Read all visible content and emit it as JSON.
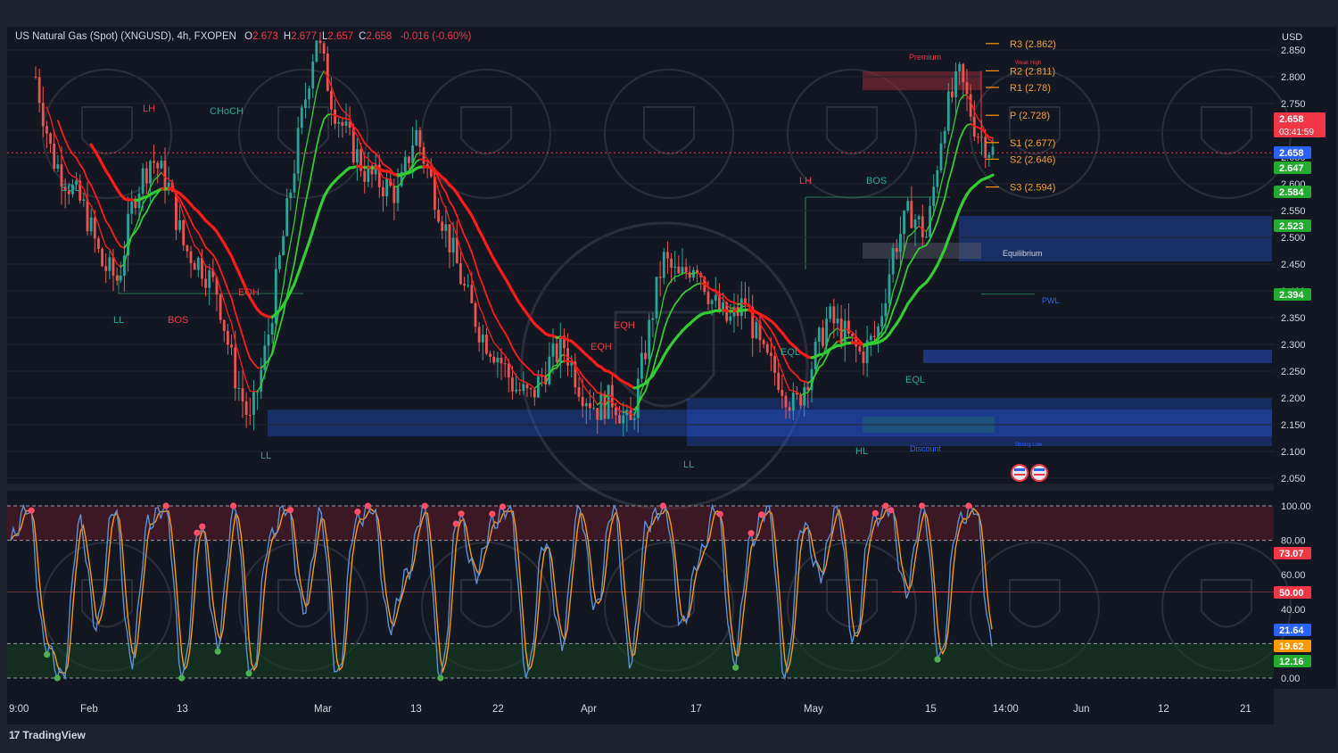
{
  "header": {
    "symbol_title": "US Natural Gas (Spot) (XNGUSD), 4h, FXOPEN",
    "ohlc": [
      {
        "label": "O",
        "value": "2.673"
      },
      {
        "label": "H",
        "value": "2.677"
      },
      {
        "label": "L",
        "value": "2.657"
      },
      {
        "label": "C",
        "value": "2.658"
      }
    ],
    "change": "-0.016 (-0.60%)"
  },
  "currency": "USD",
  "chart_data": [
    {
      "type": "line",
      "title": "US Natural Gas (Spot) (XNGUSD), 4h, FXOPEN",
      "ylim": [
        2.05,
        2.85
      ],
      "y_ticks": [
        "2.850",
        "2.800",
        "2.750",
        "2.700",
        "2.650",
        "2.600",
        "2.550",
        "2.500",
        "2.450",
        "2.400",
        "2.350",
        "2.300",
        "2.250",
        "2.200",
        "2.150",
        "2.100",
        "2.050"
      ],
      "x_ticks": [
        "9:00",
        "Feb",
        "13",
        "Mar",
        "13",
        "22",
        "Apr",
        "17",
        "May",
        "15",
        "14:00",
        "Jun",
        "12",
        "21"
      ],
      "price_path": [
        2.8,
        2.65,
        2.6,
        2.55,
        2.45,
        2.42,
        2.58,
        2.65,
        2.6,
        2.48,
        2.45,
        2.4,
        2.25,
        2.15,
        2.3,
        2.5,
        2.7,
        2.88,
        2.75,
        2.68,
        2.62,
        2.6,
        2.58,
        2.7,
        2.6,
        2.5,
        2.4,
        2.32,
        2.28,
        2.22,
        2.2,
        2.26,
        2.3,
        2.22,
        2.18,
        2.2,
        2.14,
        2.3,
        2.46,
        2.42,
        2.46,
        2.38,
        2.34,
        2.38,
        2.28,
        2.24,
        2.18,
        2.26,
        2.35,
        2.32,
        2.28,
        2.32,
        2.48,
        2.55,
        2.5,
        2.72,
        2.8,
        2.7,
        2.66
      ],
      "price_labels": [
        {
          "value": "2.658",
          "note": "03:41:59",
          "color": "#f23645"
        },
        {
          "value": "2.658",
          "color": "#2962ff"
        },
        {
          "value": "2.647",
          "color": "#22ab2e"
        },
        {
          "value": "2.584",
          "color": "#22ab2e"
        },
        {
          "value": "2.523",
          "color": "#22ab2e"
        },
        {
          "value": "2.394",
          "color": "#22ab2e"
        }
      ],
      "pivots": [
        {
          "label": "R3 (2.862)",
          "value": 2.862
        },
        {
          "label": "R2 (2.811)",
          "value": 2.811
        },
        {
          "label": "R1 (2.78)",
          "value": 2.78
        },
        {
          "label": "P (2.728)",
          "value": 2.728
        },
        {
          "label": "S1 (2.677)",
          "value": 2.677
        },
        {
          "label": "S2 (2.646)",
          "value": 2.646
        },
        {
          "label": "S3 (2.594)",
          "value": 2.594
        }
      ],
      "structure_labels": [
        "LH",
        "CHoCH",
        "EQL",
        "LL",
        "BOS",
        "EQH",
        "LL",
        "EQH",
        "EQH",
        "LL",
        "EQL",
        "LH",
        "BOS",
        "EQL",
        "HL",
        "Premium",
        "Equilibrium",
        "Discount",
        "PWL",
        "Weak High",
        "Strong Low"
      ]
    },
    {
      "type": "line",
      "title": "",
      "ylim": [
        0,
        100
      ],
      "y_ticks": [
        "100.00",
        "80.00",
        "60.00",
        "40.00",
        "20.00",
        "0.00"
      ],
      "levels": [
        100,
        80,
        50,
        20,
        0
      ],
      "k_path": [
        80,
        100,
        20,
        0,
        90,
        30,
        100,
        10,
        90,
        100,
        0,
        90,
        20,
        100,
        0,
        80,
        100,
        40,
        95,
        0,
        90,
        100,
        30,
        60,
        100,
        0,
        95,
        60,
        90,
        100,
        0,
        80,
        20,
        100,
        40,
        100,
        10,
        90,
        100,
        30,
        70,
        100,
        10,
        80,
        100,
        0,
        90,
        60,
        100,
        20,
        90,
        100,
        50,
        100,
        10,
        90,
        100,
        20
      ],
      "price_labels": [
        {
          "value": "73.07",
          "color": "#f23645"
        },
        {
          "value": "50.00",
          "color": "#f23645"
        },
        {
          "value": "21.64",
          "color": "#2962ff"
        },
        {
          "value": "19.62",
          "color": "#ff9800"
        },
        {
          "value": "12.16",
          "color": "#22ab2e"
        }
      ]
    }
  ],
  "brand": {
    "name": "TradingView",
    "glyph": "17"
  },
  "colors": {
    "bg": "#131722",
    "frame": "#1e222d",
    "bear": "#f23645",
    "bull": "#22ab2e",
    "ma_red": "#ff1a1a",
    "ma_green": "#33cc33",
    "zone_blue": "#2962ff",
    "zone_red": "#8b2a35",
    "osc_blue": "#5b8fd6",
    "osc_orange": "#ff9800"
  }
}
